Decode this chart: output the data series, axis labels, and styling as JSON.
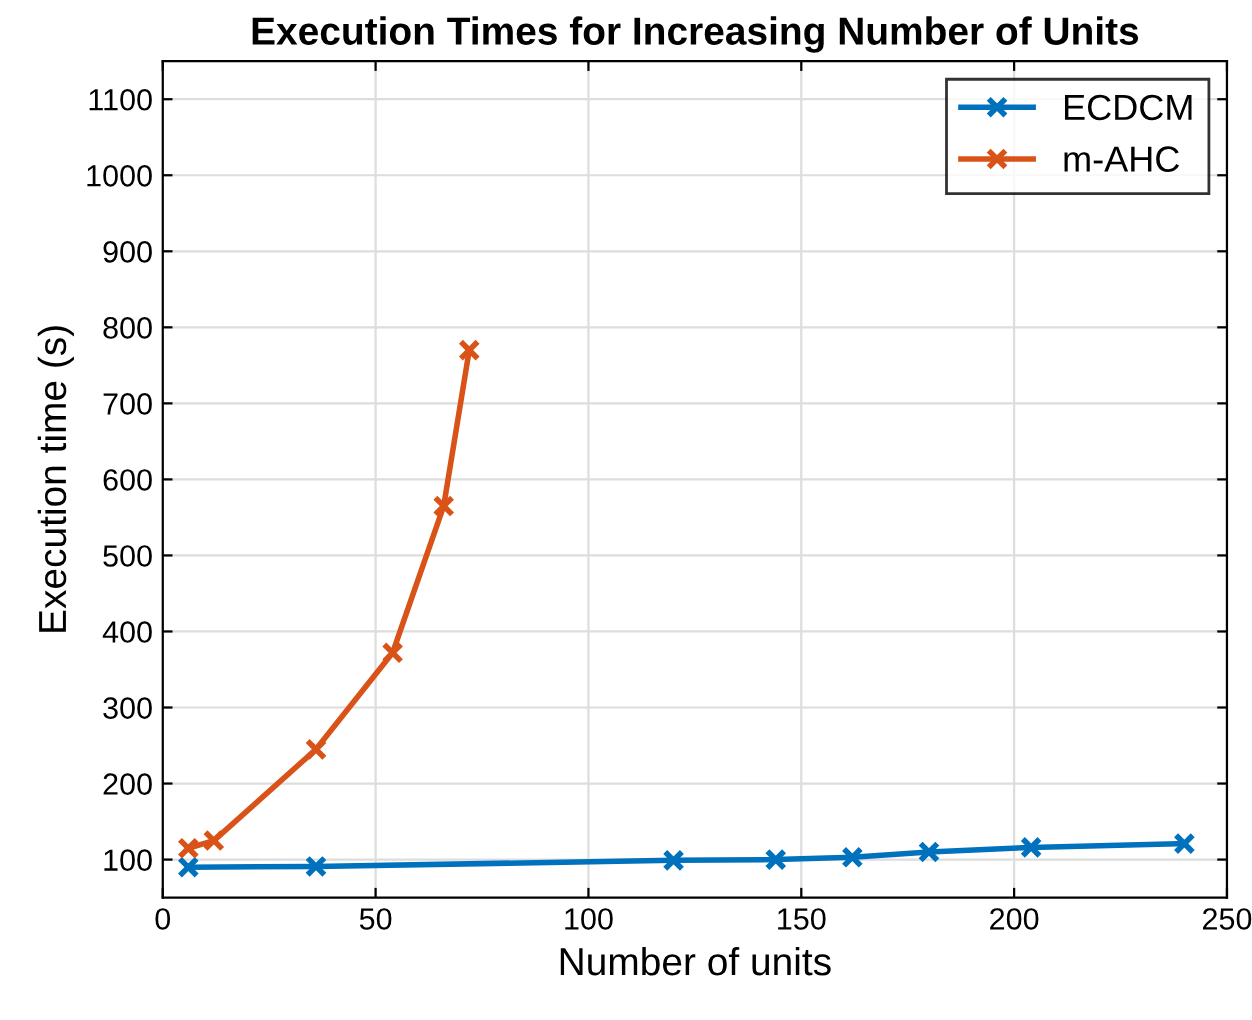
{
  "chart_data": {
    "type": "line",
    "title": "Execution Times for Increasing Number of Units",
    "xlabel": "Number of units",
    "ylabel": "Execution time (s)",
    "series": [
      {
        "name": "ECDCM",
        "color": "#0072bd",
        "x": [
          6,
          36,
          120,
          144,
          162,
          180,
          204,
          240
        ],
        "values": [
          90,
          91,
          99,
          100,
          103,
          110,
          116,
          121
        ]
      },
      {
        "name": "m-AHC",
        "color": "#d95319",
        "x": [
          6,
          12,
          36,
          54,
          66,
          72
        ],
        "values": [
          115,
          125,
          245,
          372,
          565,
          770
        ]
      }
    ],
    "xlim": [
      0,
      250
    ],
    "xticks": [
      0,
      50,
      100,
      150,
      200,
      250
    ],
    "ylim": [
      50,
      1150
    ],
    "yticks": [
      100,
      200,
      300,
      400,
      500,
      600,
      700,
      800,
      900,
      1000,
      1100
    ],
    "grid": true,
    "legend": "top right",
    "marker": "cross",
    "line_style": "solid"
  }
}
